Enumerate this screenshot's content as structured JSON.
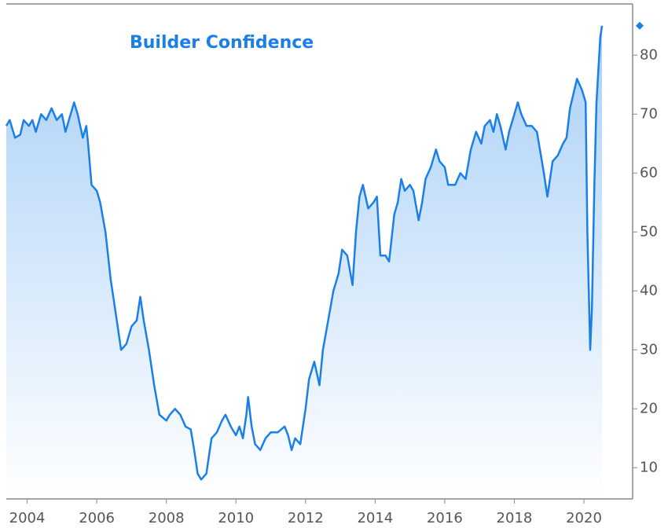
{
  "chart_data": {
    "type": "line",
    "title": "Builder Confidence",
    "x": [
      2003.4,
      2003.5,
      2003.65,
      2003.8,
      2003.9,
      2004.05,
      2004.15,
      2004.25,
      2004.4,
      2004.55,
      2004.7,
      2004.85,
      2005.0,
      2005.1,
      2005.25,
      2005.35,
      2005.45,
      2005.6,
      2005.7,
      2005.75,
      2005.85,
      2006.0,
      2006.1,
      2006.25,
      2006.4,
      2006.55,
      2006.7,
      2006.85,
      2007.0,
      2007.15,
      2007.25,
      2007.35,
      2007.5,
      2007.65,
      2007.8,
      2008.0,
      2008.1,
      2008.25,
      2008.4,
      2008.55,
      2008.7,
      2008.8,
      2008.9,
      2009.0,
      2009.15,
      2009.3,
      2009.45,
      2009.6,
      2009.7,
      2009.85,
      2010.0,
      2010.1,
      2010.2,
      2010.3,
      2010.35,
      2010.45,
      2010.55,
      2010.7,
      2010.85,
      2011.0,
      2011.2,
      2011.4,
      2011.5,
      2011.6,
      2011.7,
      2011.85,
      2012.0,
      2012.1,
      2012.25,
      2012.4,
      2012.5,
      2012.65,
      2012.8,
      2012.95,
      2013.05,
      2013.2,
      2013.35,
      2013.45,
      2013.55,
      2013.65,
      2013.8,
      2013.95,
      2014.05,
      2014.15,
      2014.3,
      2014.4,
      2014.55,
      2014.65,
      2014.75,
      2014.85,
      2015.0,
      2015.1,
      2015.25,
      2015.35,
      2015.45,
      2015.6,
      2015.75,
      2015.85,
      2016.0,
      2016.1,
      2016.3,
      2016.45,
      2016.6,
      2016.75,
      2016.9,
      2017.05,
      2017.15,
      2017.3,
      2017.4,
      2017.5,
      2017.6,
      2017.75,
      2017.85,
      2018.0,
      2018.1,
      2018.2,
      2018.35,
      2018.5,
      2018.65,
      2018.85,
      2018.95,
      2019.1,
      2019.25,
      2019.4,
      2019.5,
      2019.6,
      2019.8,
      2019.95,
      2020.05,
      2020.1,
      2020.18,
      2020.23,
      2020.3,
      2020.36,
      2020.42,
      2020.47,
      2020.52
    ],
    "series": [
      {
        "name": "Builder Confidence",
        "color": "#1a7fe8",
        "values": [
          68,
          69,
          66,
          66.5,
          69,
          68,
          69,
          67,
          70,
          69,
          71,
          69,
          70,
          67,
          70,
          72,
          70,
          66,
          68,
          65,
          58,
          57,
          55,
          50,
          42,
          36,
          30,
          31,
          34,
          35,
          39,
          35,
          30,
          24,
          19,
          18,
          19,
          20,
          19,
          17,
          16.5,
          13,
          9,
          8,
          9,
          15,
          16,
          18,
          19,
          17,
          15.5,
          17,
          15,
          19,
          22,
          17,
          14,
          13,
          15,
          16,
          16,
          17,
          15.5,
          13,
          15,
          14,
          20,
          25,
          28,
          24,
          30,
          35,
          40,
          43,
          47,
          46,
          41,
          50,
          56,
          58,
          54,
          55,
          56,
          46,
          46,
          45,
          53,
          55,
          59,
          57,
          58,
          57,
          52,
          55,
          59,
          61,
          64,
          62,
          61,
          58,
          58,
          60,
          59,
          64,
          67,
          65,
          68,
          69,
          67,
          70,
          68,
          64,
          67,
          70,
          72,
          70,
          68,
          68,
          67,
          60,
          56,
          62,
          63,
          65,
          66,
          71,
          76,
          74,
          72,
          50,
          30,
          37,
          58,
          72,
          78,
          83,
          85
        ]
      }
    ],
    "xlim": [
      2003.4,
      2021.4
    ],
    "ylim": [
      4.7,
      88.7
    ],
    "xticks": [
      2004,
      2006,
      2008,
      2010,
      2012,
      2014,
      2016,
      2018,
      2020
    ],
    "yticks": [
      10,
      20,
      30,
      40,
      50,
      60,
      70,
      80
    ]
  }
}
